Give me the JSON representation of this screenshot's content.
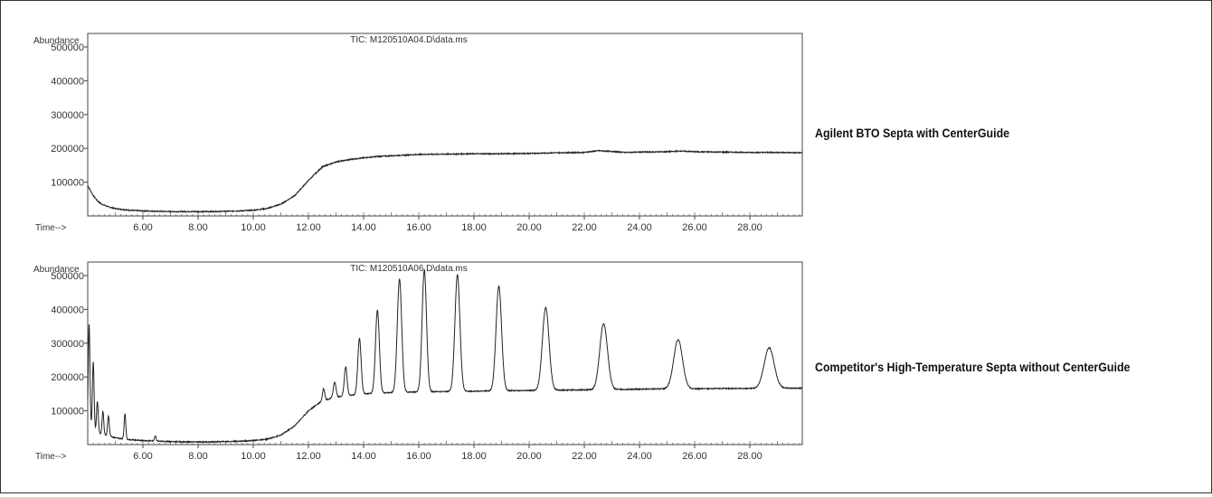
{
  "chart_data": [
    {
      "type": "line",
      "title": "TIC: M120510A04.D\\data.ms",
      "ylabel": "Abundance",
      "xlabel": "Time-->",
      "xlim": [
        4.0,
        29.9
      ],
      "ylim": [
        0,
        540000
      ],
      "x_ticks": [
        "6.00",
        "8.00",
        "10.00",
        "12.00",
        "14.00",
        "16.00",
        "18.00",
        "20.00",
        "22.00",
        "24.00",
        "26.00",
        "28.00"
      ],
      "y_ticks": [
        "100000",
        "200000",
        "300000",
        "400000",
        "500000"
      ],
      "caption": "Agilent BTO Septa with CenterGuide",
      "series": [
        {
          "color": "#222222",
          "x": [
            4.0,
            4.1,
            4.2,
            4.35,
            4.5,
            4.75,
            5.0,
            5.5,
            6.0,
            6.5,
            7.0,
            7.5,
            8.0,
            8.5,
            9.0,
            9.5,
            10.0,
            10.5,
            11.0,
            11.5,
            12.0,
            12.5,
            13.0,
            13.5,
            14.0,
            14.5,
            15.0,
            16.0,
            17.0,
            18.0,
            19.0,
            20.0,
            21.0,
            22.0,
            22.5,
            23.0,
            23.5,
            24.0,
            25.0,
            25.5,
            26.0,
            27.0,
            28.0,
            29.0,
            29.9
          ],
          "y": [
            90000,
            75000,
            60000,
            45000,
            35000,
            27000,
            22000,
            17000,
            15000,
            14000,
            13000,
            13000,
            13000,
            13000,
            14000,
            15000,
            17000,
            22000,
            35000,
            60000,
            105000,
            145000,
            160000,
            167000,
            172000,
            176000,
            178000,
            182000,
            183000,
            184000,
            184000,
            185000,
            187000,
            188000,
            193000,
            191000,
            188000,
            189000,
            190000,
            192000,
            190000,
            189000,
            188000,
            188000,
            187000
          ]
        }
      ]
    },
    {
      "type": "line",
      "title": "TIC: M120510A06.D\\data.ms",
      "ylabel": "Abundance",
      "xlabel": "Time-->",
      "xlim": [
        4.0,
        29.9
      ],
      "ylim": [
        0,
        540000
      ],
      "x_ticks": [
        "6.00",
        "8.00",
        "10.00",
        "12.00",
        "14.00",
        "16.00",
        "18.00",
        "20.00",
        "22.00",
        "24.00",
        "26.00",
        "28.00"
      ],
      "y_ticks": [
        "100000",
        "200000",
        "300000",
        "400000",
        "500000"
      ],
      "caption": "Competitor's High-Temperature Septa without CenterGuide",
      "series": [
        {
          "color": "#222222",
          "x": [
            4.0,
            4.2,
            4.5,
            4.8,
            5.0,
            5.5,
            6.0,
            6.5,
            7.0,
            7.5,
            8.0,
            8.5,
            9.0,
            9.5,
            10.0,
            10.5,
            11.0,
            11.5,
            12.0,
            12.5,
            13.0,
            13.5,
            14.0,
            14.5,
            15.0,
            16.0,
            17.0,
            18.0,
            19.0,
            20.0,
            21.0,
            22.0,
            23.0,
            24.0,
            25.0,
            26.0,
            27.0,
            28.0,
            29.0,
            29.9
          ],
          "y": [
            60000,
            45000,
            30000,
            25000,
            20000,
            15000,
            12000,
            10000,
            9000,
            8000,
            8000,
            8000,
            9000,
            10000,
            12000,
            16000,
            28000,
            55000,
            100000,
            130000,
            140000,
            146000,
            150000,
            152000,
            154000,
            156000,
            157000,
            158000,
            159000,
            160000,
            161000,
            162000,
            163000,
            164000,
            165000,
            165000,
            166000,
            166000,
            167000,
            167000
          ]
        }
      ],
      "peaks": [
        {
          "x": 4.05,
          "height": 300000,
          "width": 0.03
        },
        {
          "x": 4.2,
          "height": 200000,
          "width": 0.03
        },
        {
          "x": 4.35,
          "height": 90000,
          "width": 0.03
        },
        {
          "x": 4.55,
          "height": 70000,
          "width": 0.03
        },
        {
          "x": 4.75,
          "height": 60000,
          "width": 0.03
        },
        {
          "x": 5.35,
          "height": 75000,
          "width": 0.03
        },
        {
          "x": 6.45,
          "height": 15000,
          "width": 0.03
        },
        {
          "x": 12.55,
          "height": 35000,
          "width": 0.04
        },
        {
          "x": 12.95,
          "height": 45000,
          "width": 0.05
        },
        {
          "x": 13.35,
          "height": 85000,
          "width": 0.05
        },
        {
          "x": 13.85,
          "height": 165000,
          "width": 0.06
        },
        {
          "x": 14.5,
          "height": 245000,
          "width": 0.07
        },
        {
          "x": 15.3,
          "height": 335000,
          "width": 0.08
        },
        {
          "x": 16.2,
          "height": 360000,
          "width": 0.08
        },
        {
          "x": 17.4,
          "height": 345000,
          "width": 0.09
        },
        {
          "x": 18.9,
          "height": 310000,
          "width": 0.1
        },
        {
          "x": 20.6,
          "height": 245000,
          "width": 0.12
        },
        {
          "x": 22.7,
          "height": 195000,
          "width": 0.14
        },
        {
          "x": 25.4,
          "height": 145000,
          "width": 0.16
        },
        {
          "x": 28.7,
          "height": 120000,
          "width": 0.18
        }
      ]
    }
  ]
}
